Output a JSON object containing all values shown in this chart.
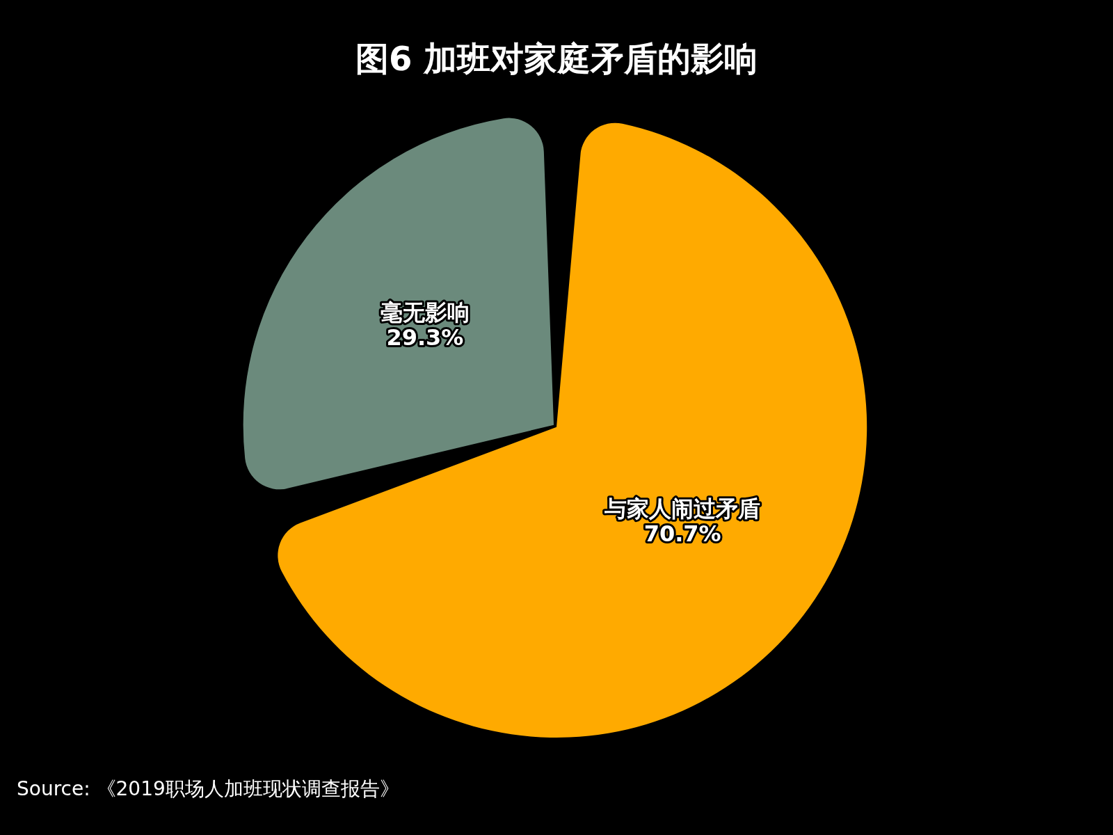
{
  "chart_data": {
    "type": "pie",
    "title": "图6 加班对家庭矛盾的影响",
    "categories": [
      "与家人闹过矛盾",
      "毫无影响"
    ],
    "values": [
      70.7,
      29.3
    ],
    "colors": [
      "#ffaa00",
      "#6b8a7c"
    ],
    "value_labels": [
      "70.7%",
      "29.3%"
    ],
    "legend": false,
    "annotations": [
      "Source: 《2019职场人加班现状调查报告》"
    ]
  }
}
